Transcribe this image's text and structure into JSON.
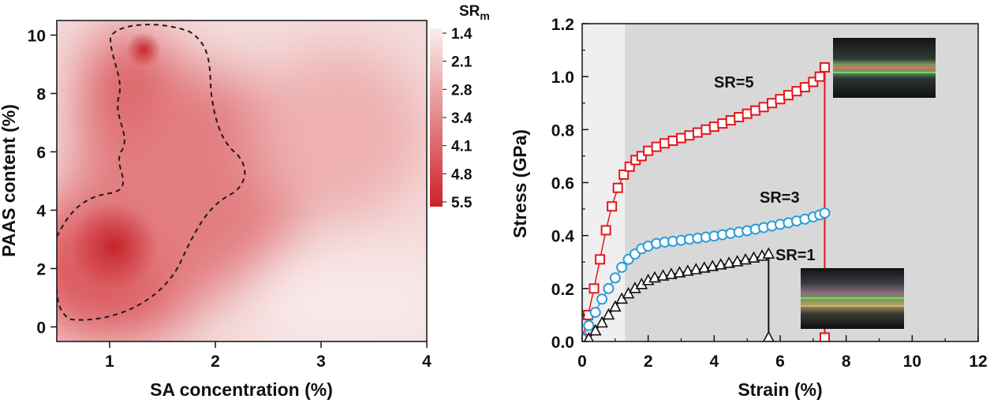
{
  "chart_data": [
    {
      "type": "heatmap",
      "title": "",
      "xlabel": "SA concentration (%)",
      "ylabel": "PAAS content (%)",
      "xlim": [
        0.5,
        4
      ],
      "ylim": [
        -0.5,
        10.5
      ],
      "xticks": [
        1,
        2,
        3,
        4
      ],
      "yticks": [
        0,
        2,
        4,
        6,
        8,
        10
      ],
      "colorbar": {
        "title": "SR",
        "title_sub": "m",
        "ticks": [
          "1.4",
          "2.1",
          "2.8",
          "3.4",
          "4.1",
          "4.8",
          "5.5"
        ],
        "range": [
          1.4,
          5.5
        ],
        "low_color": "#fbeeee",
        "high_color": "#cc2229"
      },
      "peaks": [
        {
          "x": 1.05,
          "y": 2.8,
          "value": 5.5
        },
        {
          "x": 1.35,
          "y": 9.5,
          "value": 5.3
        }
      ],
      "contour_level": 4.8
    },
    {
      "type": "scatter",
      "title": "",
      "xlabel": "Strain (%)",
      "ylabel": "Stress (GPa)",
      "xlim": [
        0,
        12
      ],
      "ylim": [
        0,
        1.2
      ],
      "xticks": [
        0,
        2,
        4,
        6,
        8,
        10,
        12
      ],
      "yticks": [
        0.0,
        0.2,
        0.4,
        0.6,
        0.8,
        1.0,
        1.2
      ],
      "xtick_labels": [
        "0",
        "2",
        "4",
        "6",
        "8",
        "10",
        "12"
      ],
      "ytick_labels": [
        "0.0",
        "0.2",
        "0.4",
        "0.6",
        "0.8",
        "1.0",
        "1.2"
      ],
      "background_regions": [
        {
          "x_from": 0,
          "x_to": 1.3,
          "color": "#efefef"
        },
        {
          "x_from": 1.3,
          "x_to": 12,
          "color": "#d8d8d8"
        }
      ],
      "series": [
        {
          "name": "SR=5",
          "marker": "square",
          "color": "#e8141b",
          "x": [
            0,
            0.18,
            0.36,
            0.54,
            0.72,
            0.9,
            1.08,
            1.26,
            1.44,
            1.62,
            1.8,
            2.0,
            2.25,
            2.5,
            2.75,
            3.0,
            3.25,
            3.5,
            3.75,
            4.0,
            4.25,
            4.5,
            4.75,
            5.0,
            5.25,
            5.5,
            5.75,
            6.0,
            6.25,
            6.5,
            6.75,
            7.0,
            7.2,
            7.35
          ],
          "y": [
            0.01,
            0.1,
            0.2,
            0.31,
            0.42,
            0.51,
            0.58,
            0.63,
            0.66,
            0.685,
            0.7,
            0.72,
            0.735,
            0.748,
            0.758,
            0.768,
            0.778,
            0.789,
            0.8,
            0.811,
            0.823,
            0.835,
            0.847,
            0.86,
            0.872,
            0.885,
            0.9,
            0.915,
            0.93,
            0.945,
            0.96,
            0.98,
            1.0,
            1.035
          ],
          "failure_x": 7.35
        },
        {
          "name": "SR=3",
          "marker": "circle",
          "color": "#2b9cd8",
          "x": [
            0,
            0.2,
            0.4,
            0.6,
            0.8,
            1.0,
            1.2,
            1.4,
            1.6,
            1.8,
            2.0,
            2.25,
            2.5,
            2.75,
            3.0,
            3.25,
            3.5,
            3.75,
            4.0,
            4.25,
            4.5,
            4.75,
            5.0,
            5.25,
            5.5,
            5.75,
            6.0,
            6.25,
            6.5,
            6.75,
            7.0,
            7.2,
            7.35
          ],
          "y": [
            0.01,
            0.06,
            0.11,
            0.16,
            0.2,
            0.24,
            0.28,
            0.31,
            0.33,
            0.35,
            0.36,
            0.37,
            0.375,
            0.378,
            0.382,
            0.386,
            0.39,
            0.394,
            0.398,
            0.403,
            0.408,
            0.413,
            0.418,
            0.424,
            0.43,
            0.436,
            0.442,
            0.448,
            0.455,
            0.462,
            0.47,
            0.478,
            0.485
          ]
        },
        {
          "name": "SR=1",
          "marker": "triangle",
          "color": "#111111",
          "x": [
            0.2,
            0.4,
            0.6,
            0.8,
            1.0,
            1.2,
            1.4,
            1.6,
            1.8,
            2.0,
            2.2,
            2.45,
            2.7,
            2.95,
            3.2,
            3.45,
            3.7,
            3.95,
            4.2,
            4.45,
            4.7,
            4.95,
            5.2,
            5.45,
            5.65
          ],
          "y": [
            0.01,
            0.04,
            0.07,
            0.1,
            0.13,
            0.16,
            0.18,
            0.2,
            0.215,
            0.23,
            0.24,
            0.247,
            0.253,
            0.259,
            0.265,
            0.271,
            0.277,
            0.283,
            0.289,
            0.295,
            0.301,
            0.308,
            0.315,
            0.322,
            0.33
          ],
          "failure_x": 5.65
        }
      ]
    }
  ]
}
